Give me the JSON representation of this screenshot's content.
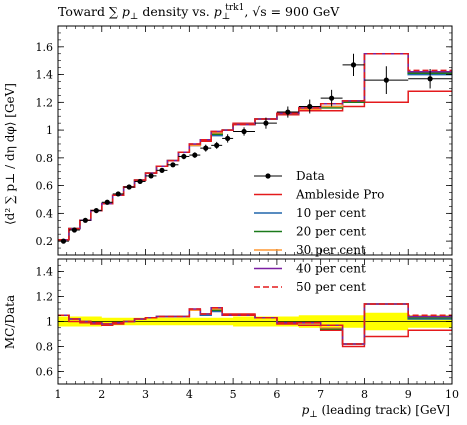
{
  "chart_data": [
    {
      "type": "line",
      "title": "Toward ∑ p⊥ density vs. p⊥trk1, √s = 900 GeV",
      "title_parts": {
        "prefix": "Toward ∑ ",
        "p": "p",
        "perp": "⊥",
        "density_vs": " density vs. ",
        "trk1": "trk1",
        "sqrt_s": ", √s = 900 GeV"
      },
      "ylabel": "⟨d² ∑ p⊥ / dη dφ⟩ [GeV]",
      "xlim": [
        1,
        10
      ],
      "ylim": [
        0.1,
        1.75
      ],
      "yticks": [
        "0.2",
        "0.4",
        "0.6",
        "0.8",
        "1",
        "1.2",
        "1.4",
        "1.6"
      ],
      "bin_edges": [
        1.0,
        1.25,
        1.5,
        1.75,
        2.0,
        2.25,
        2.5,
        2.75,
        3.0,
        3.25,
        3.5,
        3.75,
        4.0,
        4.25,
        4.5,
        4.75,
        5.0,
        5.5,
        6.0,
        6.5,
        7.0,
        7.5,
        8.0,
        9.0,
        10.0
      ],
      "data": {
        "name": "Data",
        "x": [
          1.125,
          1.375,
          1.625,
          1.875,
          2.125,
          2.375,
          2.625,
          2.875,
          3.125,
          3.375,
          3.625,
          3.875,
          4.125,
          4.375,
          4.625,
          4.875,
          5.25,
          5.75,
          6.25,
          6.75,
          7.25,
          7.75,
          8.5,
          9.5
        ],
        "y": [
          0.2,
          0.28,
          0.35,
          0.42,
          0.48,
          0.54,
          0.59,
          0.63,
          0.67,
          0.71,
          0.75,
          0.81,
          0.82,
          0.87,
          0.89,
          0.94,
          0.99,
          1.05,
          1.13,
          1.17,
          1.23,
          1.47,
          1.36,
          1.37
        ],
        "yerr": [
          0.01,
          0.01,
          0.01,
          0.01,
          0.01,
          0.01,
          0.01,
          0.01,
          0.015,
          0.015,
          0.015,
          0.02,
          0.02,
          0.025,
          0.025,
          0.03,
          0.03,
          0.04,
          0.04,
          0.05,
          0.06,
          0.08,
          0.1,
          0.07
        ]
      },
      "series": [
        {
          "name": "Ambleside Pro",
          "color": "#e41a1c",
          "dash": false,
          "values": [
            0.21,
            0.29,
            0.35,
            0.42,
            0.47,
            0.53,
            0.59,
            0.64,
            0.69,
            0.74,
            0.78,
            0.84,
            0.89,
            0.92,
            0.99,
            1.0,
            1.05,
            1.08,
            1.11,
            1.14,
            1.14,
            1.17,
            1.2,
            1.28
          ]
        },
        {
          "name": "10 per cent",
          "color": "#2166ac",
          "dash": false,
          "values": [
            0.21,
            0.29,
            0.35,
            0.42,
            0.47,
            0.53,
            0.59,
            0.64,
            0.69,
            0.74,
            0.78,
            0.84,
            0.89,
            0.93,
            0.96,
            1.0,
            1.04,
            1.08,
            1.12,
            1.15,
            1.17,
            1.21,
            1.55,
            1.4
          ]
        },
        {
          "name": "20 per cent",
          "color": "#1b7a1b",
          "dash": false,
          "values": [
            0.21,
            0.29,
            0.35,
            0.42,
            0.47,
            0.53,
            0.59,
            0.64,
            0.69,
            0.74,
            0.78,
            0.84,
            0.89,
            0.93,
            0.97,
            1.0,
            1.04,
            1.08,
            1.12,
            1.15,
            1.16,
            1.2,
            1.55,
            1.41
          ]
        },
        {
          "name": "30 per cent",
          "color": "#ff9933",
          "dash": false,
          "values": [
            0.21,
            0.29,
            0.35,
            0.42,
            0.47,
            0.53,
            0.59,
            0.64,
            0.69,
            0.74,
            0.78,
            0.84,
            0.89,
            0.93,
            0.98,
            1.0,
            1.04,
            1.08,
            1.12,
            1.15,
            1.17,
            1.21,
            1.55,
            1.42
          ]
        },
        {
          "name": "40 per cent",
          "color": "#7b1fa2",
          "dash": false,
          "values": [
            0.21,
            0.29,
            0.35,
            0.42,
            0.47,
            0.53,
            0.59,
            0.64,
            0.69,
            0.74,
            0.78,
            0.84,
            0.9,
            0.93,
            0.99,
            1.0,
            1.04,
            1.08,
            1.12,
            1.16,
            1.19,
            1.21,
            1.55,
            1.42
          ]
        },
        {
          "name": "50 per cent",
          "color": "#e41a1c",
          "dash": true,
          "values": [
            0.21,
            0.29,
            0.35,
            0.42,
            0.47,
            0.53,
            0.59,
            0.64,
            0.69,
            0.74,
            0.78,
            0.84,
            0.9,
            0.93,
            0.99,
            1.0,
            1.04,
            1.08,
            1.12,
            1.16,
            1.19,
            1.21,
            1.55,
            1.43
          ]
        }
      ],
      "legend_position": "bottom-right"
    },
    {
      "type": "line",
      "ylabel": "MC/Data",
      "xlabel": "p⊥ (leading track) [GeV]",
      "xlabel_parts": {
        "p": "p",
        "perp": "⊥",
        "rest": " (leading track) [GeV]"
      },
      "xlim": [
        1,
        10
      ],
      "ylim": [
        0.5,
        1.5
      ],
      "yticks": [
        "0.6",
        "0.8",
        "1",
        "1.2",
        "1.4"
      ],
      "xticks": [
        "1",
        "2",
        "3",
        "4",
        "5",
        "6",
        "7",
        "8",
        "9",
        "10"
      ],
      "band_color": "#ffff00",
      "band": {
        "lo": [
          0.96,
          0.96,
          0.96,
          0.96,
          0.97,
          0.97,
          0.97,
          0.97,
          0.97,
          0.97,
          0.97,
          0.97,
          0.97,
          0.97,
          0.97,
          0.97,
          0.96,
          0.96,
          0.96,
          0.95,
          0.95,
          0.95,
          0.93,
          0.95
        ],
        "hi": [
          1.04,
          1.04,
          1.04,
          1.04,
          1.03,
          1.03,
          1.03,
          1.03,
          1.03,
          1.03,
          1.03,
          1.03,
          1.03,
          1.03,
          1.03,
          1.03,
          1.04,
          1.04,
          1.04,
          1.05,
          1.05,
          1.05,
          1.07,
          1.05
        ]
      },
      "series": [
        {
          "name": "Ambleside Pro",
          "color": "#e41a1c",
          "dash": false,
          "values": [
            1.05,
            1.0,
            0.99,
            0.98,
            0.97,
            0.98,
            1.0,
            1.02,
            1.03,
            1.04,
            1.04,
            1.04,
            1.09,
            1.06,
            1.11,
            1.06,
            1.06,
            1.03,
            0.98,
            0.97,
            0.93,
            0.8,
            0.88,
            0.93
          ]
        },
        {
          "name": "10 per cent",
          "color": "#2166ac",
          "dash": false,
          "values": [
            1.05,
            1.02,
            1.0,
            0.99,
            0.98,
            0.99,
            1.0,
            1.02,
            1.03,
            1.04,
            1.04,
            1.04,
            1.09,
            1.05,
            1.08,
            1.05,
            1.05,
            1.03,
            0.99,
            0.98,
            0.95,
            0.82,
            1.14,
            1.02
          ]
        },
        {
          "name": "20 per cent",
          "color": "#1b7a1b",
          "dash": false,
          "values": [
            1.05,
            1.02,
            1.0,
            0.99,
            0.98,
            0.99,
            1.0,
            1.02,
            1.03,
            1.04,
            1.04,
            1.04,
            1.09,
            1.06,
            1.09,
            1.05,
            1.05,
            1.03,
            0.99,
            0.98,
            0.94,
            0.82,
            1.14,
            1.03
          ]
        },
        {
          "name": "30 per cent",
          "color": "#ff9933",
          "dash": false,
          "values": [
            1.05,
            1.02,
            1.0,
            0.99,
            0.98,
            0.99,
            1.0,
            1.02,
            1.03,
            1.04,
            1.04,
            1.04,
            1.09,
            1.06,
            1.1,
            1.05,
            1.05,
            1.03,
            0.99,
            0.98,
            0.95,
            0.82,
            1.14,
            1.04
          ]
        },
        {
          "name": "40 per cent",
          "color": "#7b1fa2",
          "dash": false,
          "values": [
            1.05,
            1.02,
            1.0,
            0.99,
            0.98,
            0.99,
            1.0,
            1.02,
            1.03,
            1.04,
            1.04,
            1.04,
            1.1,
            1.06,
            1.11,
            1.05,
            1.05,
            1.03,
            0.99,
            0.99,
            0.97,
            0.82,
            1.14,
            1.04
          ]
        },
        {
          "name": "50 per cent",
          "color": "#e41a1c",
          "dash": true,
          "values": [
            1.05,
            1.02,
            1.0,
            0.99,
            0.98,
            0.99,
            1.0,
            1.02,
            1.03,
            1.04,
            1.04,
            1.04,
            1.1,
            1.06,
            1.11,
            1.05,
            1.05,
            1.03,
            0.99,
            0.99,
            0.97,
            0.82,
            1.14,
            1.05
          ]
        }
      ]
    }
  ]
}
